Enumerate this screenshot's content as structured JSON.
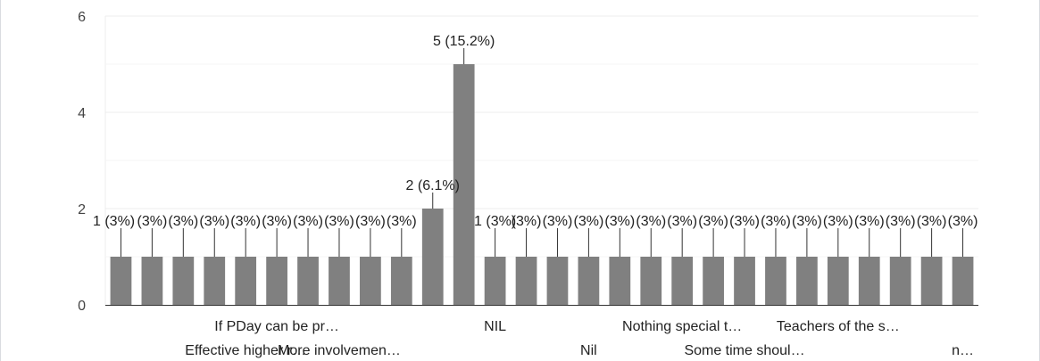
{
  "chart_data": {
    "type": "bar",
    "ylim": [
      0,
      6
    ],
    "yticks": [
      "0",
      "2",
      "4",
      "6"
    ],
    "grid": true,
    "values": [
      1,
      1,
      1,
      1,
      1,
      1,
      1,
      1,
      1,
      1,
      2,
      5,
      1,
      1,
      1,
      1,
      1,
      1,
      1,
      1,
      1,
      1,
      1,
      1,
      1,
      1,
      1,
      1
    ],
    "data_labels": [
      "1 (3%)",
      "(3%)",
      "(3%)",
      "(3%)",
      "(3%)",
      "(3%)",
      "(3%)",
      "(3%)",
      "(3%)",
      "(3%)",
      "2 (6.1%)",
      "5 (15.2%)",
      "1 (3%)",
      "(3%)",
      "(3%)",
      "(3%)",
      "(3%)",
      "(3%)",
      "(3%)",
      "(3%)",
      "(3%)",
      "(3%)",
      "(3%)",
      "(3%)",
      "(3%)",
      "(3%)",
      "(3%)",
      "(3%)"
    ],
    "x_tick_labels": [
      {
        "index": 4,
        "row": 1,
        "text": "Effective higher r…"
      },
      {
        "index": 5,
        "row": 0,
        "text": "If PDay can be pr…"
      },
      {
        "index": 7,
        "row": 1,
        "text": "More involvemen…"
      },
      {
        "index": 12,
        "row": 0,
        "text": "NIL"
      },
      {
        "index": 15,
        "row": 1,
        "text": "Nil"
      },
      {
        "index": 18,
        "row": 0,
        "text": "Nothing special t…"
      },
      {
        "index": 20,
        "row": 1,
        "text": "Some time shoul…"
      },
      {
        "index": 23,
        "row": 0,
        "text": "Teachers of the s…"
      },
      {
        "index": 27,
        "row": 1,
        "text": "n…"
      }
    ]
  }
}
